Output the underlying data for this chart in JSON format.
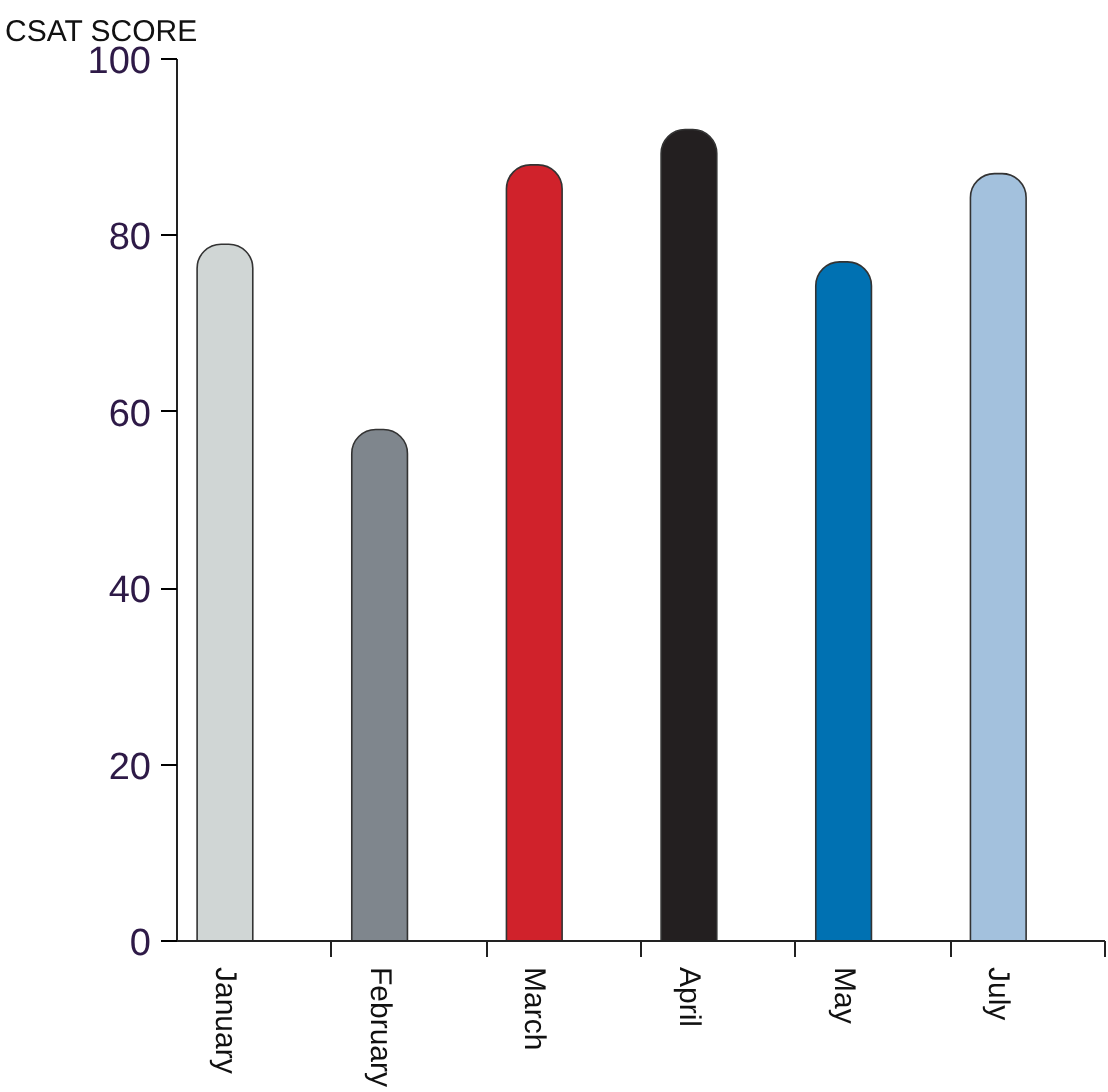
{
  "chart_data": {
    "type": "bar",
    "ylabel": "CSAT SCORE",
    "categories": [
      "January",
      "February",
      "March",
      "April",
      "May",
      "July"
    ],
    "values": [
      79,
      58,
      88,
      92,
      77,
      87
    ],
    "colors": [
      "#d0d6d5",
      "#7f868d",
      "#d0222b",
      "#231f20",
      "#0071b2",
      "#a3c1dd"
    ],
    "ylim": [
      0,
      100
    ],
    "yticks": [
      0,
      20,
      40,
      60,
      80,
      100
    ]
  }
}
